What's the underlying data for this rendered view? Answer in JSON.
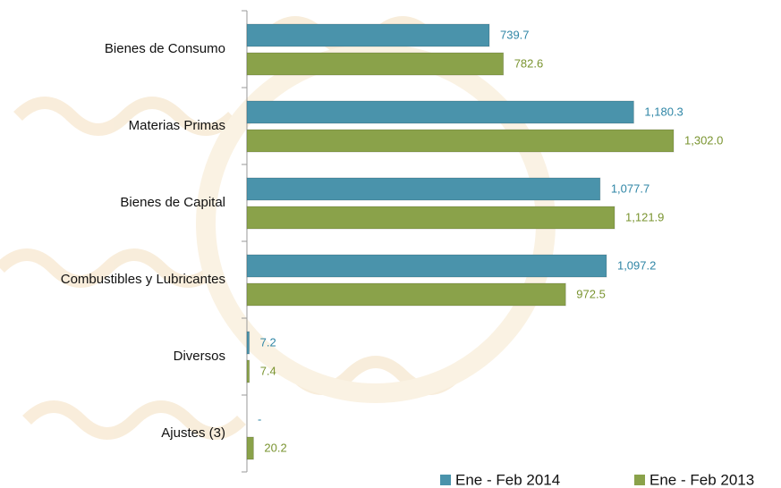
{
  "chart_data": {
    "type": "hbar",
    "categories": [
      "Bienes de Consumo",
      "Materias Primas",
      "Bienes de Capital",
      "Combustibles y Lubricantes",
      "Diversos",
      "Ajustes (3)"
    ],
    "series": [
      {
        "name": "Ene - Feb 2014",
        "color": "#4a93ab",
        "label_color": "#2f86a6",
        "values": [
          739.7,
          1180.3,
          1077.7,
          1097.2,
          7.2,
          null
        ],
        "value_labels": [
          "739.7",
          "1,180.3",
          "1,077.7",
          "1,097.2",
          "7.2",
          "-"
        ]
      },
      {
        "name": "Ene - Feb 2013",
        "color": "#8aa24a",
        "label_color": "#7a9430",
        "values": [
          782.6,
          1302.0,
          1121.9,
          972.5,
          7.4,
          20.2
        ],
        "value_labels": [
          "782.6",
          "1,302.0",
          "1,121.9",
          "972.5",
          "7.4",
          "20.2"
        ]
      }
    ]
  }
}
